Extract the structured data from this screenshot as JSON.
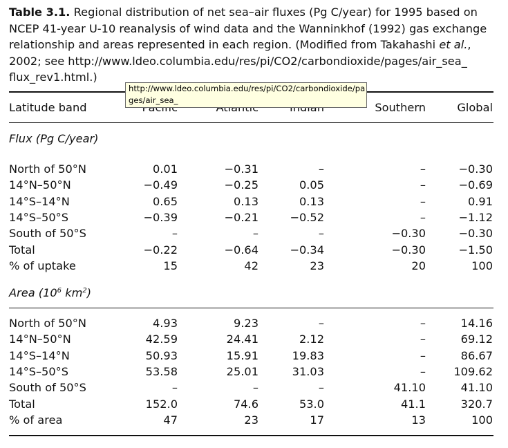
{
  "caption": {
    "label": "Table 3.1.",
    "text_part1": " Regional distribution of net sea–air fluxes (Pg C/year) for 1995 based on NCEP 41-year U-10 reanalysis of wind data and the Wanninkhof (1992) gas exchange relationship and areas represented in each region. (Modified from Takahashi ",
    "et_al": "et al.",
    "text_part2": ", 2002; see http://www.ldeo.columbia.edu/res/pi/CO2/carbondioxide/pages/air_sea_ flux_rev1.html.)"
  },
  "header": {
    "latitude_band": "Latitude band",
    "pacific": "Pacific",
    "atlantic": "Atlantic",
    "indian": "Indian",
    "southern": "Southern",
    "global": "Global"
  },
  "tooltip": {
    "line1": "http://www.ldeo.columbia.edu/res/pi/CO2/carbondioxide/pa",
    "line2": "ges/air_sea_"
  },
  "flux_section": {
    "title": "Flux (Pg C/year)"
  },
  "flux_rows": [
    {
      "label": "North of 50°N",
      "pacific": "0.01",
      "atlantic": "−0.31",
      "indian": "–",
      "southern": "–",
      "global": "−0.30"
    },
    {
      "label": "14°N–50°N",
      "pacific": "−0.49",
      "atlantic": "−0.25",
      "indian": "0.05",
      "southern": "–",
      "global": "−0.69"
    },
    {
      "label": "14°S–14°N",
      "pacific": "0.65",
      "atlantic": "0.13",
      "indian": "0.13",
      "southern": "–",
      "global": "0.91"
    },
    {
      "label": "14°S–50°S",
      "pacific": "−0.39",
      "atlantic": "−0.21",
      "indian": "−0.52",
      "southern": "–",
      "global": "−1.12"
    },
    {
      "label": "South of 50°S",
      "pacific": "–",
      "atlantic": "–",
      "indian": "–",
      "southern": "−0.30",
      "global": "−0.30"
    },
    {
      "label": "Total",
      "pacific": "−0.22",
      "atlantic": "−0.64",
      "indian": "−0.34",
      "southern": "−0.30",
      "global": "−1.50"
    },
    {
      "label": "% of uptake",
      "pacific": "15",
      "atlantic": "42",
      "indian": "23",
      "southern": "20",
      "global": "100"
    }
  ],
  "area_section": {
    "title_prefix": "Area (10",
    "title_exp": "6",
    "title_mid": " km",
    "title_exp2": "2",
    "title_suffix": ")"
  },
  "area_rows": [
    {
      "label": "North of 50°N",
      "pacific": "4.93",
      "atlantic": "9.23",
      "indian": "–",
      "southern": "–",
      "global": "14.16"
    },
    {
      "label": "14°N–50°N",
      "pacific": "42.59",
      "atlantic": "24.41",
      "indian": "2.12",
      "southern": "–",
      "global": "69.12"
    },
    {
      "label": "14°S–14°N",
      "pacific": "50.93",
      "atlantic": "15.91",
      "indian": "19.83",
      "southern": "–",
      "global": "86.67"
    },
    {
      "label": "14°S–50°S",
      "pacific": "53.58",
      "atlantic": "25.01",
      "indian": "31.03",
      "southern": "–",
      "global": "109.62"
    },
    {
      "label": "South of 50°S",
      "pacific": "–",
      "atlantic": "–",
      "indian": "–",
      "southern": "41.10",
      "global": "41.10"
    },
    {
      "label": "Total",
      "pacific": "152.0",
      "atlantic": "74.6",
      "indian": "53.0",
      "southern": "41.1",
      "global": "320.7"
    },
    {
      "label": "% of area",
      "pacific": "47",
      "atlantic": "23",
      "indian": "17",
      "southern": "13",
      "global": "100"
    }
  ]
}
